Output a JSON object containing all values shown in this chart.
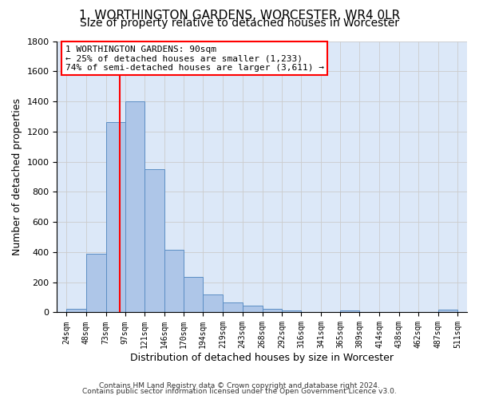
{
  "title": "1, WORTHINGTON GARDENS, WORCESTER, WR4 0LR",
  "subtitle": "Size of property relative to detached houses in Worcester",
  "xlabel": "Distribution of detached houses by size in Worcester",
  "ylabel": "Number of detached properties",
  "bar_color": "#aec6e8",
  "bar_edge_color": "#5b8ec4",
  "bins": [
    24,
    48,
    73,
    97,
    121,
    146,
    170,
    194,
    219,
    243,
    268,
    292,
    316,
    341,
    365,
    389,
    414,
    438,
    462,
    487,
    511
  ],
  "values": [
    25,
    390,
    1260,
    1400,
    950,
    415,
    235,
    120,
    65,
    45,
    25,
    15,
    0,
    0,
    15,
    0,
    0,
    0,
    0,
    20
  ],
  "property_line_x": 90,
  "annotation_line1": "1 WORTHINGTON GARDENS: 90sqm",
  "annotation_line2": "← 25% of detached houses are smaller (1,233)",
  "annotation_line3": "74% of semi-detached houses are larger (3,611) →",
  "annotation_box_color": "white",
  "annotation_box_edge": "red",
  "vline_color": "red",
  "ylim": [
    0,
    1800
  ],
  "yticks": [
    0,
    200,
    400,
    600,
    800,
    1000,
    1200,
    1400,
    1600,
    1800
  ],
  "grid_color": "#cccccc",
  "bg_color": "#dce8f8",
  "footer_line1": "Contains HM Land Registry data © Crown copyright and database right 2024.",
  "footer_line2": "Contains public sector information licensed under the Open Government Licence v3.0.",
  "title_fontsize": 11,
  "subtitle_fontsize": 10,
  "xlabel_fontsize": 9,
  "ylabel_fontsize": 9,
  "annot_fontsize": 8
}
